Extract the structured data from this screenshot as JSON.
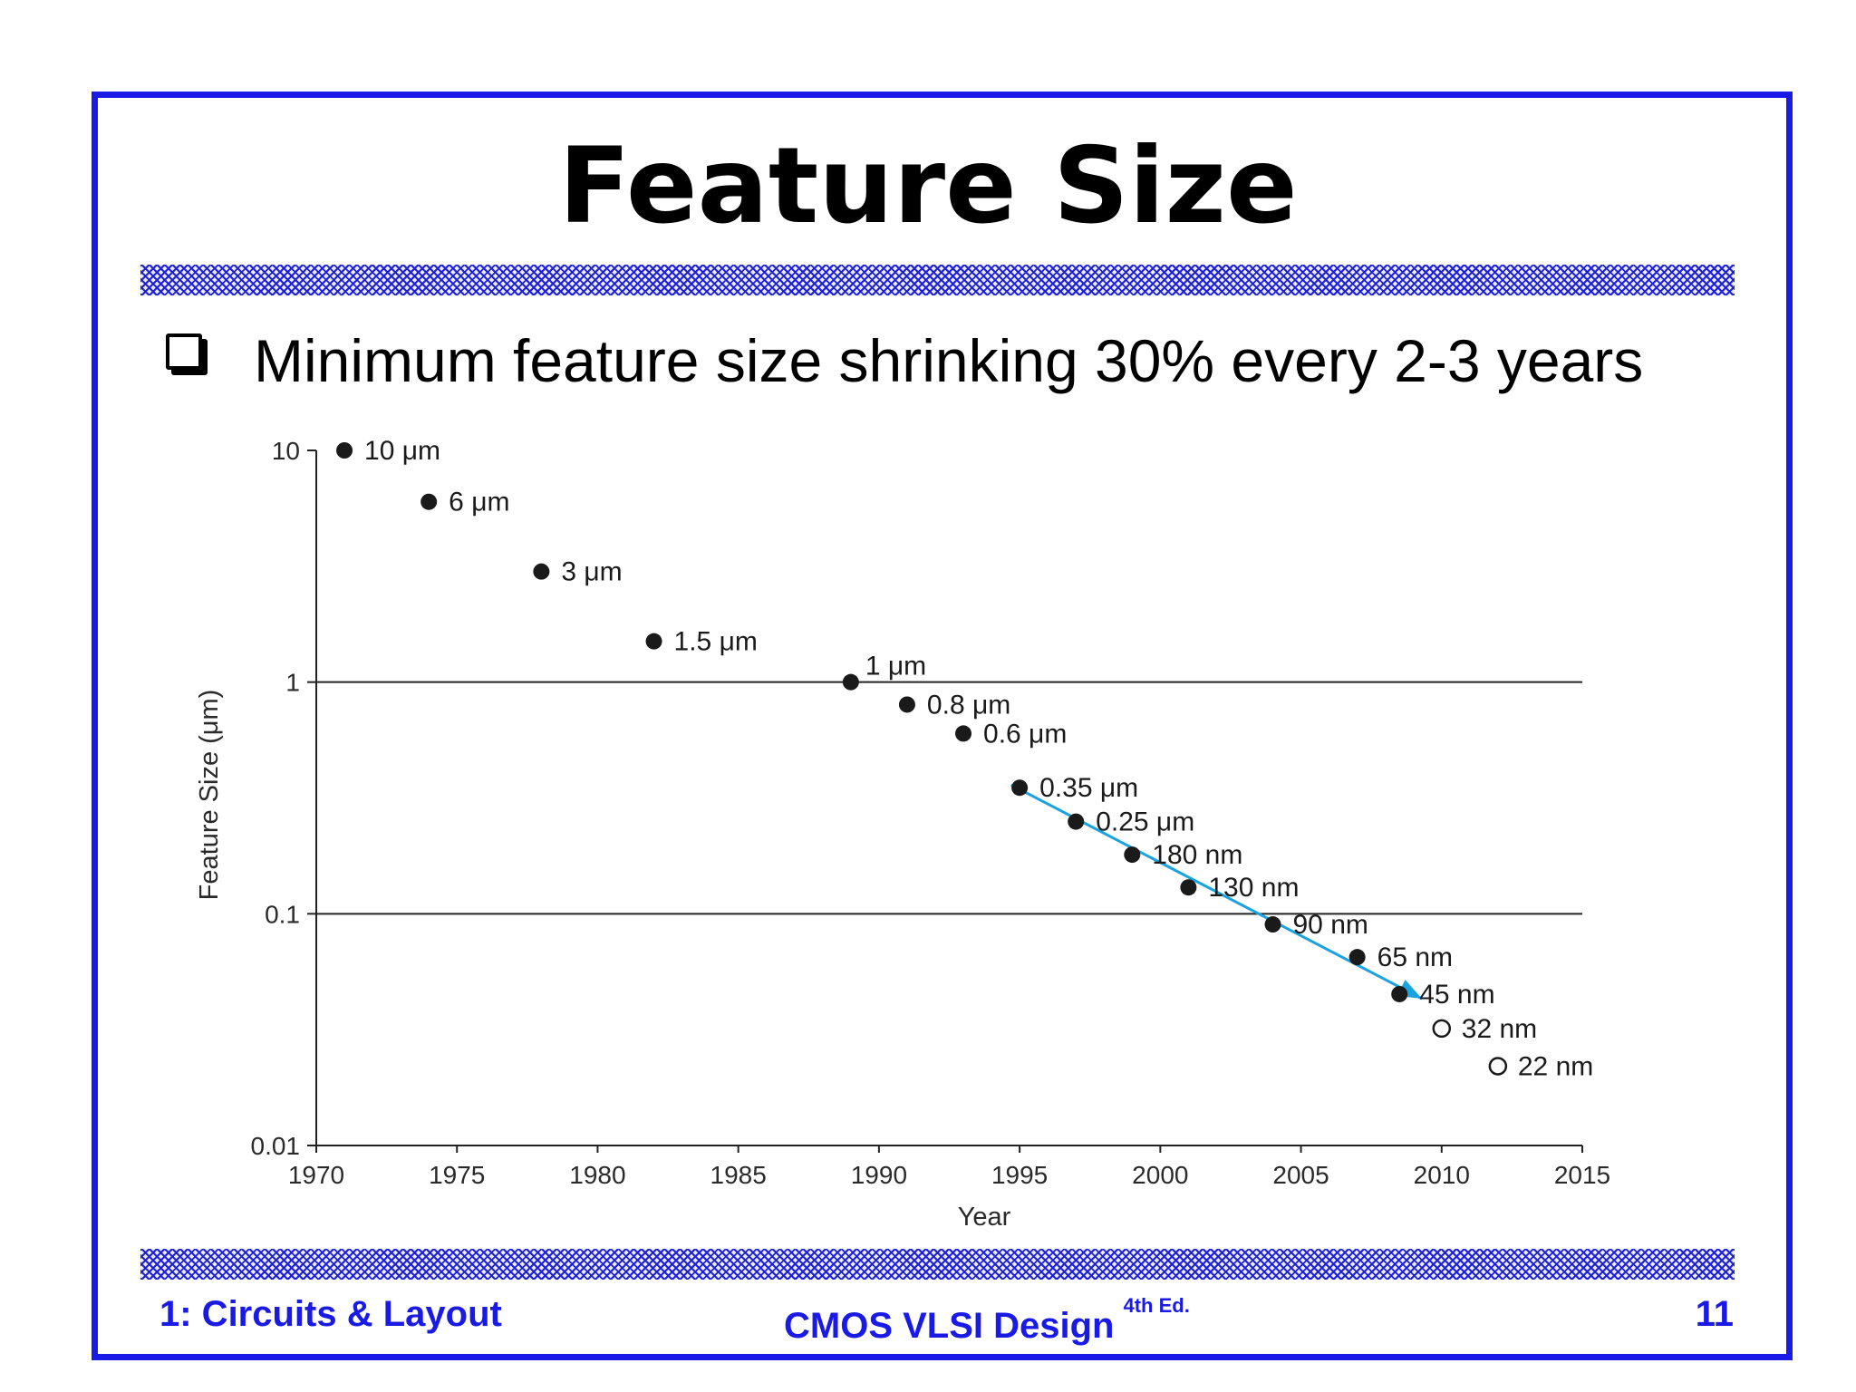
{
  "slide": {
    "title": "Feature Size",
    "bullet": "Minimum feature size shrinking 30% every 2-3 years"
  },
  "footer": {
    "left": "1: Circuits & Layout",
    "center": "CMOS VLSI Design",
    "center_sup": "4th Ed.",
    "page_number": "11"
  },
  "colors": {
    "frame": "#1a1ae6",
    "footer_text": "#1a1ae6",
    "trend_arrow": "#1aa3e0",
    "points": "#1a1a1a"
  },
  "chart_data": {
    "type": "scatter",
    "xlabel": "Year",
    "ylabel": "Feature Size (μm)",
    "xlim": [
      1970,
      2015
    ],
    "ylim": [
      0.01,
      10
    ],
    "yscale": "log",
    "x_ticks": [
      1970,
      1975,
      1980,
      1985,
      1990,
      1995,
      2000,
      2005,
      2010,
      2015
    ],
    "y_ticks": [
      {
        "value": 10,
        "label": "10"
      },
      {
        "value": 1,
        "label": "1"
      },
      {
        "value": 0.1,
        "label": "0.1"
      },
      {
        "value": 0.01,
        "label": "0.01"
      }
    ],
    "gridlines_y": [
      1,
      0.1
    ],
    "points": [
      {
        "year": 1971,
        "size_um": 10,
        "label": "10 μm",
        "filled": true
      },
      {
        "year": 1974,
        "size_um": 6,
        "label": "6 μm",
        "filled": true
      },
      {
        "year": 1978,
        "size_um": 3,
        "label": "3 μm",
        "filled": true
      },
      {
        "year": 1982,
        "size_um": 1.5,
        "label": "1.5 μm",
        "filled": true
      },
      {
        "year": 1989,
        "size_um": 1,
        "label": "1 μm",
        "filled": true
      },
      {
        "year": 1991,
        "size_um": 0.8,
        "label": "0.8 μm",
        "filled": true
      },
      {
        "year": 1993,
        "size_um": 0.6,
        "label": "0.6 μm",
        "filled": true
      },
      {
        "year": 1995,
        "size_um": 0.35,
        "label": "0.35 μm",
        "filled": true
      },
      {
        "year": 1997,
        "size_um": 0.25,
        "label": "0.25 μm",
        "filled": true
      },
      {
        "year": 1999,
        "size_um": 0.18,
        "label": "180 nm",
        "filled": true
      },
      {
        "year": 2001,
        "size_um": 0.13,
        "label": "130 nm",
        "filled": true
      },
      {
        "year": 2004,
        "size_um": 0.09,
        "label": "90 nm",
        "filled": true
      },
      {
        "year": 2007,
        "size_um": 0.065,
        "label": "65 nm",
        "filled": true
      },
      {
        "year": 2008.5,
        "size_um": 0.045,
        "label": "45 nm",
        "filled": true
      },
      {
        "year": 2010,
        "size_um": 0.032,
        "label": "32 nm",
        "filled": false
      },
      {
        "year": 2012,
        "size_um": 0.022,
        "label": "22 nm",
        "filled": false
      }
    ],
    "trend_arrow": {
      "from": {
        "year": 1994.7,
        "size_um": 0.36
      },
      "to": {
        "year": 2009.3,
        "size_um": 0.043
      }
    }
  }
}
